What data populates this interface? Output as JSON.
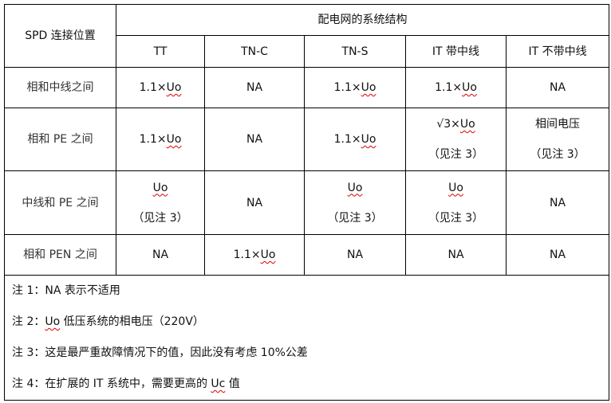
{
  "table": {
    "corner_header": "SPD 连接位置",
    "group_header": "配电网的系统结构",
    "columns": [
      "TT",
      "TN-C",
      "TN-S",
      "IT 带中线",
      "IT 不带中线"
    ],
    "rows": [
      {
        "label": "相和中线之间",
        "cells": [
          [
            "1.1×Uo"
          ],
          [
            "NA"
          ],
          [
            "1.1×Uo"
          ],
          [
            "1.1×Uo"
          ],
          [
            "NA"
          ]
        ]
      },
      {
        "label": "相和 PE 之间",
        "cells": [
          [
            "1.1×Uo"
          ],
          [
            "NA"
          ],
          [
            "1.1×Uo"
          ],
          [
            "√3×Uo",
            "（见注 3）"
          ],
          [
            "相间电压",
            "（见注 3）"
          ]
        ]
      },
      {
        "label": "中线和 PE 之间",
        "cells": [
          [
            "Uo",
            "（见注 3）"
          ],
          [
            "NA"
          ],
          [
            "Uo",
            "（见注 3）"
          ],
          [
            "Uo",
            "（见注 3）"
          ],
          [
            "NA"
          ]
        ]
      },
      {
        "label": "相和 PEN 之间",
        "cells": [
          [
            "NA"
          ],
          [
            "1.1×Uo"
          ],
          [
            "NA"
          ],
          [
            "NA"
          ],
          [
            "NA"
          ]
        ]
      }
    ],
    "notes": [
      "注 1：NA 表示不适用",
      "注 2：Uo 低压系统的相电压（220V）",
      "注 3：这是最严重故障情况下的值，因此没有考虑 10%公差",
      "注 4：在扩展的 IT 系统中，需要更高的 Uc 值"
    ],
    "spellcheck_underline_color": "#dd0000"
  }
}
